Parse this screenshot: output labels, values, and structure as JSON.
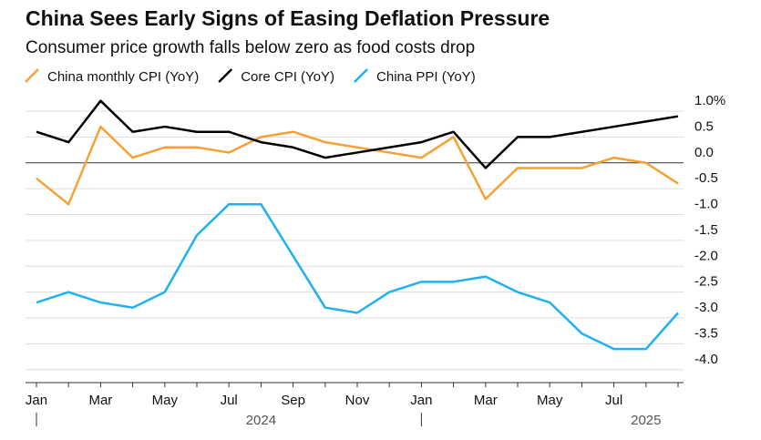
{
  "chart_data": {
    "type": "line",
    "title": "China Sees Early Signs of Easing Deflation Pressure",
    "subtitle": "Consumer price growth falls below zero as food costs drop",
    "categories": [
      "Jan",
      null,
      "Mar",
      null,
      "May",
      null,
      "Jul",
      null,
      "Sep",
      null,
      "Nov",
      null,
      "Jan",
      null,
      "Mar",
      null,
      "May",
      null,
      "Jul",
      null,
      null
    ],
    "years": [
      "2024",
      "2025"
    ],
    "series": [
      {
        "name": "China monthly CPI (YoY)",
        "color": "#f7a135",
        "values": [
          -0.3,
          -0.8,
          0.7,
          0.1,
          0.3,
          0.3,
          0.2,
          0.5,
          0.6,
          0.4,
          0.3,
          0.2,
          0.1,
          0.5,
          -0.7,
          -0.1,
          -0.1,
          -0.1,
          0.1,
          0.0,
          -0.4
        ]
      },
      {
        "name": "Core CPI (YoY)",
        "color": "#000000",
        "values": [
          0.6,
          0.4,
          1.2,
          0.6,
          0.7,
          0.6,
          0.6,
          0.4,
          0.3,
          0.1,
          0.2,
          0.3,
          0.4,
          0.6,
          -0.1,
          0.5,
          0.5,
          0.6,
          0.7,
          0.8,
          0.9
        ]
      },
      {
        "name": "China PPI (YoY)",
        "color": "#1fb1f0",
        "values": [
          -2.7,
          -2.5,
          -2.7,
          -2.8,
          -2.5,
          -1.4,
          -0.8,
          -0.8,
          -1.8,
          -2.8,
          -2.9,
          -2.5,
          -2.3,
          -2.3,
          -2.2,
          -2.5,
          -2.7,
          -3.3,
          -3.6,
          -3.6,
          -2.9
        ]
      }
    ],
    "ylim": [
      -4.25,
      1.3
    ],
    "yticks": [
      {
        "value": 1.0,
        "label": "1.0%"
      },
      0.5,
      {
        "value": 0.0,
        "label": "0.0"
      },
      -0.5,
      {
        "value": -1.0,
        "label": "-1.0"
      },
      -1.5,
      {
        "value": -2.0,
        "label": "-2.0"
      },
      -2.5,
      {
        "value": -3.0,
        "label": "-3.0"
      },
      -3.5,
      {
        "value": -4.0,
        "label": "-4.0"
      }
    ],
    "grid": true
  }
}
